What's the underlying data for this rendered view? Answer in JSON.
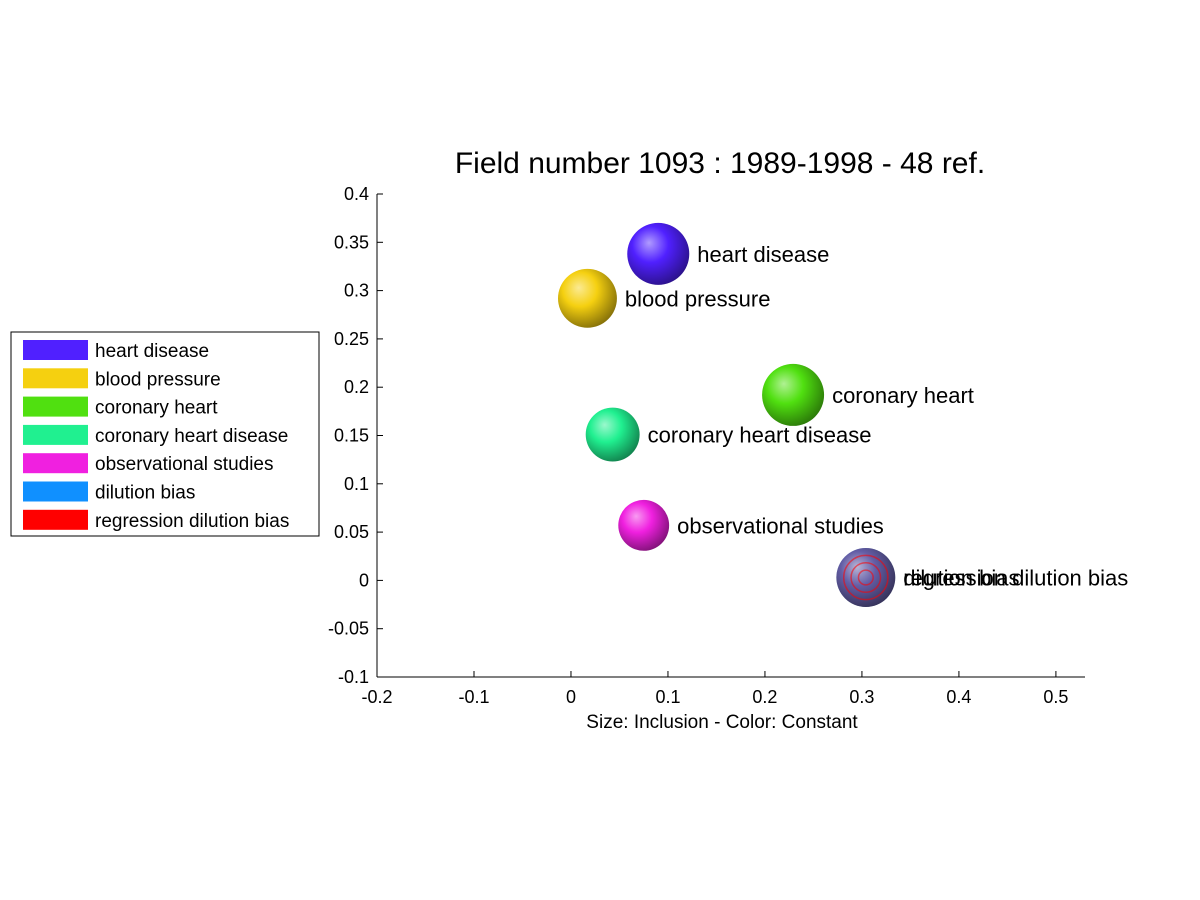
{
  "chart_data": {
    "type": "scatter",
    "title": "Field number 1093 : 1989-1998  - 48 ref.",
    "xlabel": "Size: Inclusion - Color: Constant",
    "ylabel": "",
    "xlim": [
      -0.2,
      0.53
    ],
    "ylim": [
      -0.1,
      0.4
    ],
    "x_ticks": [
      "-0.2",
      "-0.1",
      "0",
      "0.1",
      "0.2",
      "0.3",
      "0.4",
      "0.5"
    ],
    "y_ticks": [
      "-0.1",
      "-0.05",
      "0",
      "0.05",
      "0.1",
      "0.15",
      "0.2",
      "0.25",
      "0.3",
      "0.35",
      "0.4"
    ],
    "grid": false,
    "legend_placement": "left",
    "series": [
      {
        "name": "heart disease",
        "x": 0.09,
        "y": 0.338,
        "size": 1.0,
        "color": "#5020ff"
      },
      {
        "name": "blood pressure",
        "x": 0.017,
        "y": 0.292,
        "size": 0.95,
        "color": "#f5d010"
      },
      {
        "name": "coronary heart",
        "x": 0.229,
        "y": 0.192,
        "size": 1.0,
        "color": "#50e010"
      },
      {
        "name": "coronary heart disease",
        "x": 0.043,
        "y": 0.151,
        "size": 0.87,
        "color": "#20f090"
      },
      {
        "name": "observational studies",
        "x": 0.075,
        "y": 0.057,
        "size": 0.82,
        "color": "#f020e0"
      },
      {
        "name": "dilution bias",
        "x": 0.304,
        "y": 0.003,
        "size": 0.95,
        "color": "#1090ff"
      },
      {
        "name": "regression dilution bias",
        "x": 0.304,
        "y": 0.003,
        "size": 0.95,
        "color": "#ff0000"
      }
    ]
  }
}
